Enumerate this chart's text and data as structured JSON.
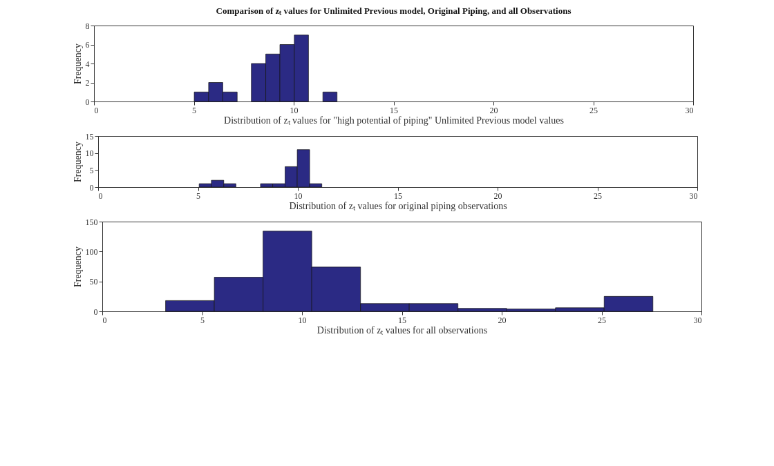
{
  "chart_data": [
    {
      "type": "histogram",
      "title": "Comparison of zₜ values for Unlimited Previous model, Original Piping, and all Observations",
      "xlabel": "Distribution of zₜ values for \"high potential of piping\" Unlimited Previous model values",
      "ylabel": "Frequency",
      "color": "#2b2a84",
      "bins": [
        5.02,
        5.74,
        6.45,
        7.17,
        7.88,
        8.6,
        9.31,
        10.03,
        10.74,
        11.46,
        12.17
      ],
      "values": [
        1,
        2,
        1,
        0,
        4,
        5,
        6,
        7,
        0,
        1
      ],
      "xlim": [
        0,
        30
      ],
      "xticks": [
        0,
        5,
        10,
        15,
        20,
        25,
        30
      ],
      "ylim": [
        0,
        8
      ],
      "yticks": [
        0,
        2,
        4,
        6,
        8
      ],
      "grid": false
    },
    {
      "type": "histogram",
      "xlabel": "Distribution of zₜ values for original piping observations",
      "ylabel": "Frequency",
      "color": "#2b2a84",
      "bins": [
        5.06,
        5.67,
        6.29,
        6.9,
        7.52,
        8.13,
        8.74,
        9.36,
        9.97,
        10.59,
        11.2
      ],
      "values": [
        1,
        2,
        1,
        0,
        0,
        1,
        1,
        6,
        11,
        1
      ],
      "xlim": [
        0,
        30
      ],
      "xticks": [
        0,
        5,
        10,
        15,
        20,
        25,
        30
      ],
      "ylim": [
        0,
        15
      ],
      "yticks": [
        0,
        5,
        10,
        15
      ],
      "grid": false
    },
    {
      "type": "histogram",
      "xlabel": "Distribution of zₜ values for all observations",
      "ylabel": "Frequency",
      "color": "#2b2a84",
      "bins": [
        3.17,
        5.61,
        8.05,
        10.49,
        12.93,
        15.37,
        17.81,
        20.25,
        22.69,
        25.13,
        27.57
      ],
      "values": [
        18,
        57,
        134,
        74,
        13,
        13,
        5,
        4,
        6,
        25
      ],
      "xlim": [
        0,
        30
      ],
      "xticks": [
        0,
        5,
        10,
        15,
        20,
        25,
        30
      ],
      "ylim": [
        0,
        150
      ],
      "yticks": [
        0,
        50,
        100,
        150
      ],
      "grid": false
    }
  ]
}
